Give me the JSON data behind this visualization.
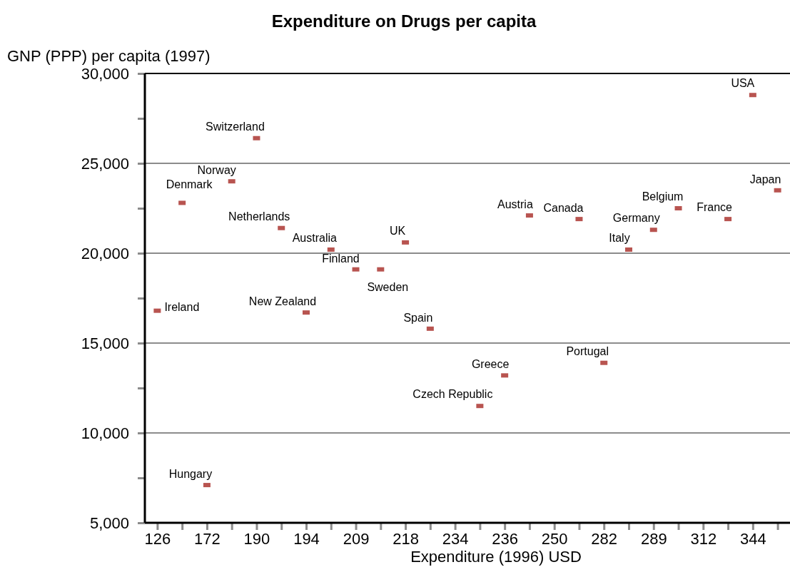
{
  "chart_data": {
    "type": "scatter",
    "title": "Expenditure on Drugs per capita",
    "xlabel": "Expenditure (1996) USD",
    "ylabel": "GNP (PPP) per capita (1997)",
    "categories": [
      "126",
      null,
      "172",
      null,
      "190",
      null,
      "194",
      null,
      "209",
      null,
      "218",
      null,
      "234",
      null,
      "236",
      null,
      "250",
      null,
      "282",
      null,
      "289",
      null,
      "312",
      null,
      "344",
      null
    ],
    "ylim": [
      5000,
      30000
    ],
    "yticks": [
      "5,000",
      {
        "value": 7500,
        "label": null
      },
      {
        "value": 10000,
        "label": "10,000"
      },
      {
        "value": 12500,
        "label": null
      },
      {
        "value": 15000,
        "label": "15,000"
      },
      {
        "value": 17500,
        "label": null
      },
      {
        "value": 20000,
        "label": "20,000"
      },
      {
        "value": 22500,
        "label": null
      },
      {
        "value": 25000,
        "label": "25,000"
      },
      {
        "value": 27500,
        "label": null
      },
      {
        "value": 30000,
        "label": "30,000"
      }
    ],
    "grid": "y",
    "marker": "square",
    "color": "#b85450",
    "values": [
      16800,
      22800,
      7100,
      24000,
      26400,
      21400,
      16700,
      20200,
      19100,
      19100,
      20600,
      15800,
      null,
      11500,
      13200,
      22100,
      null,
      21900,
      13900,
      20200,
      21300,
      22500,
      null,
      21900,
      28800,
      23500
    ],
    "annotations": [
      "Ireland",
      "Denmark",
      "Hungary",
      "Norway",
      "Switzerland",
      "Netherlands",
      "New Zealand",
      "Australia",
      "Finland",
      "Sweden",
      "UK",
      "Spain",
      "Czech Republic",
      "Greece",
      "Austria",
      "Canada",
      "Portugal",
      "Italy",
      "Germany",
      "Belgium",
      "France",
      "USA",
      "Japan"
    ]
  }
}
